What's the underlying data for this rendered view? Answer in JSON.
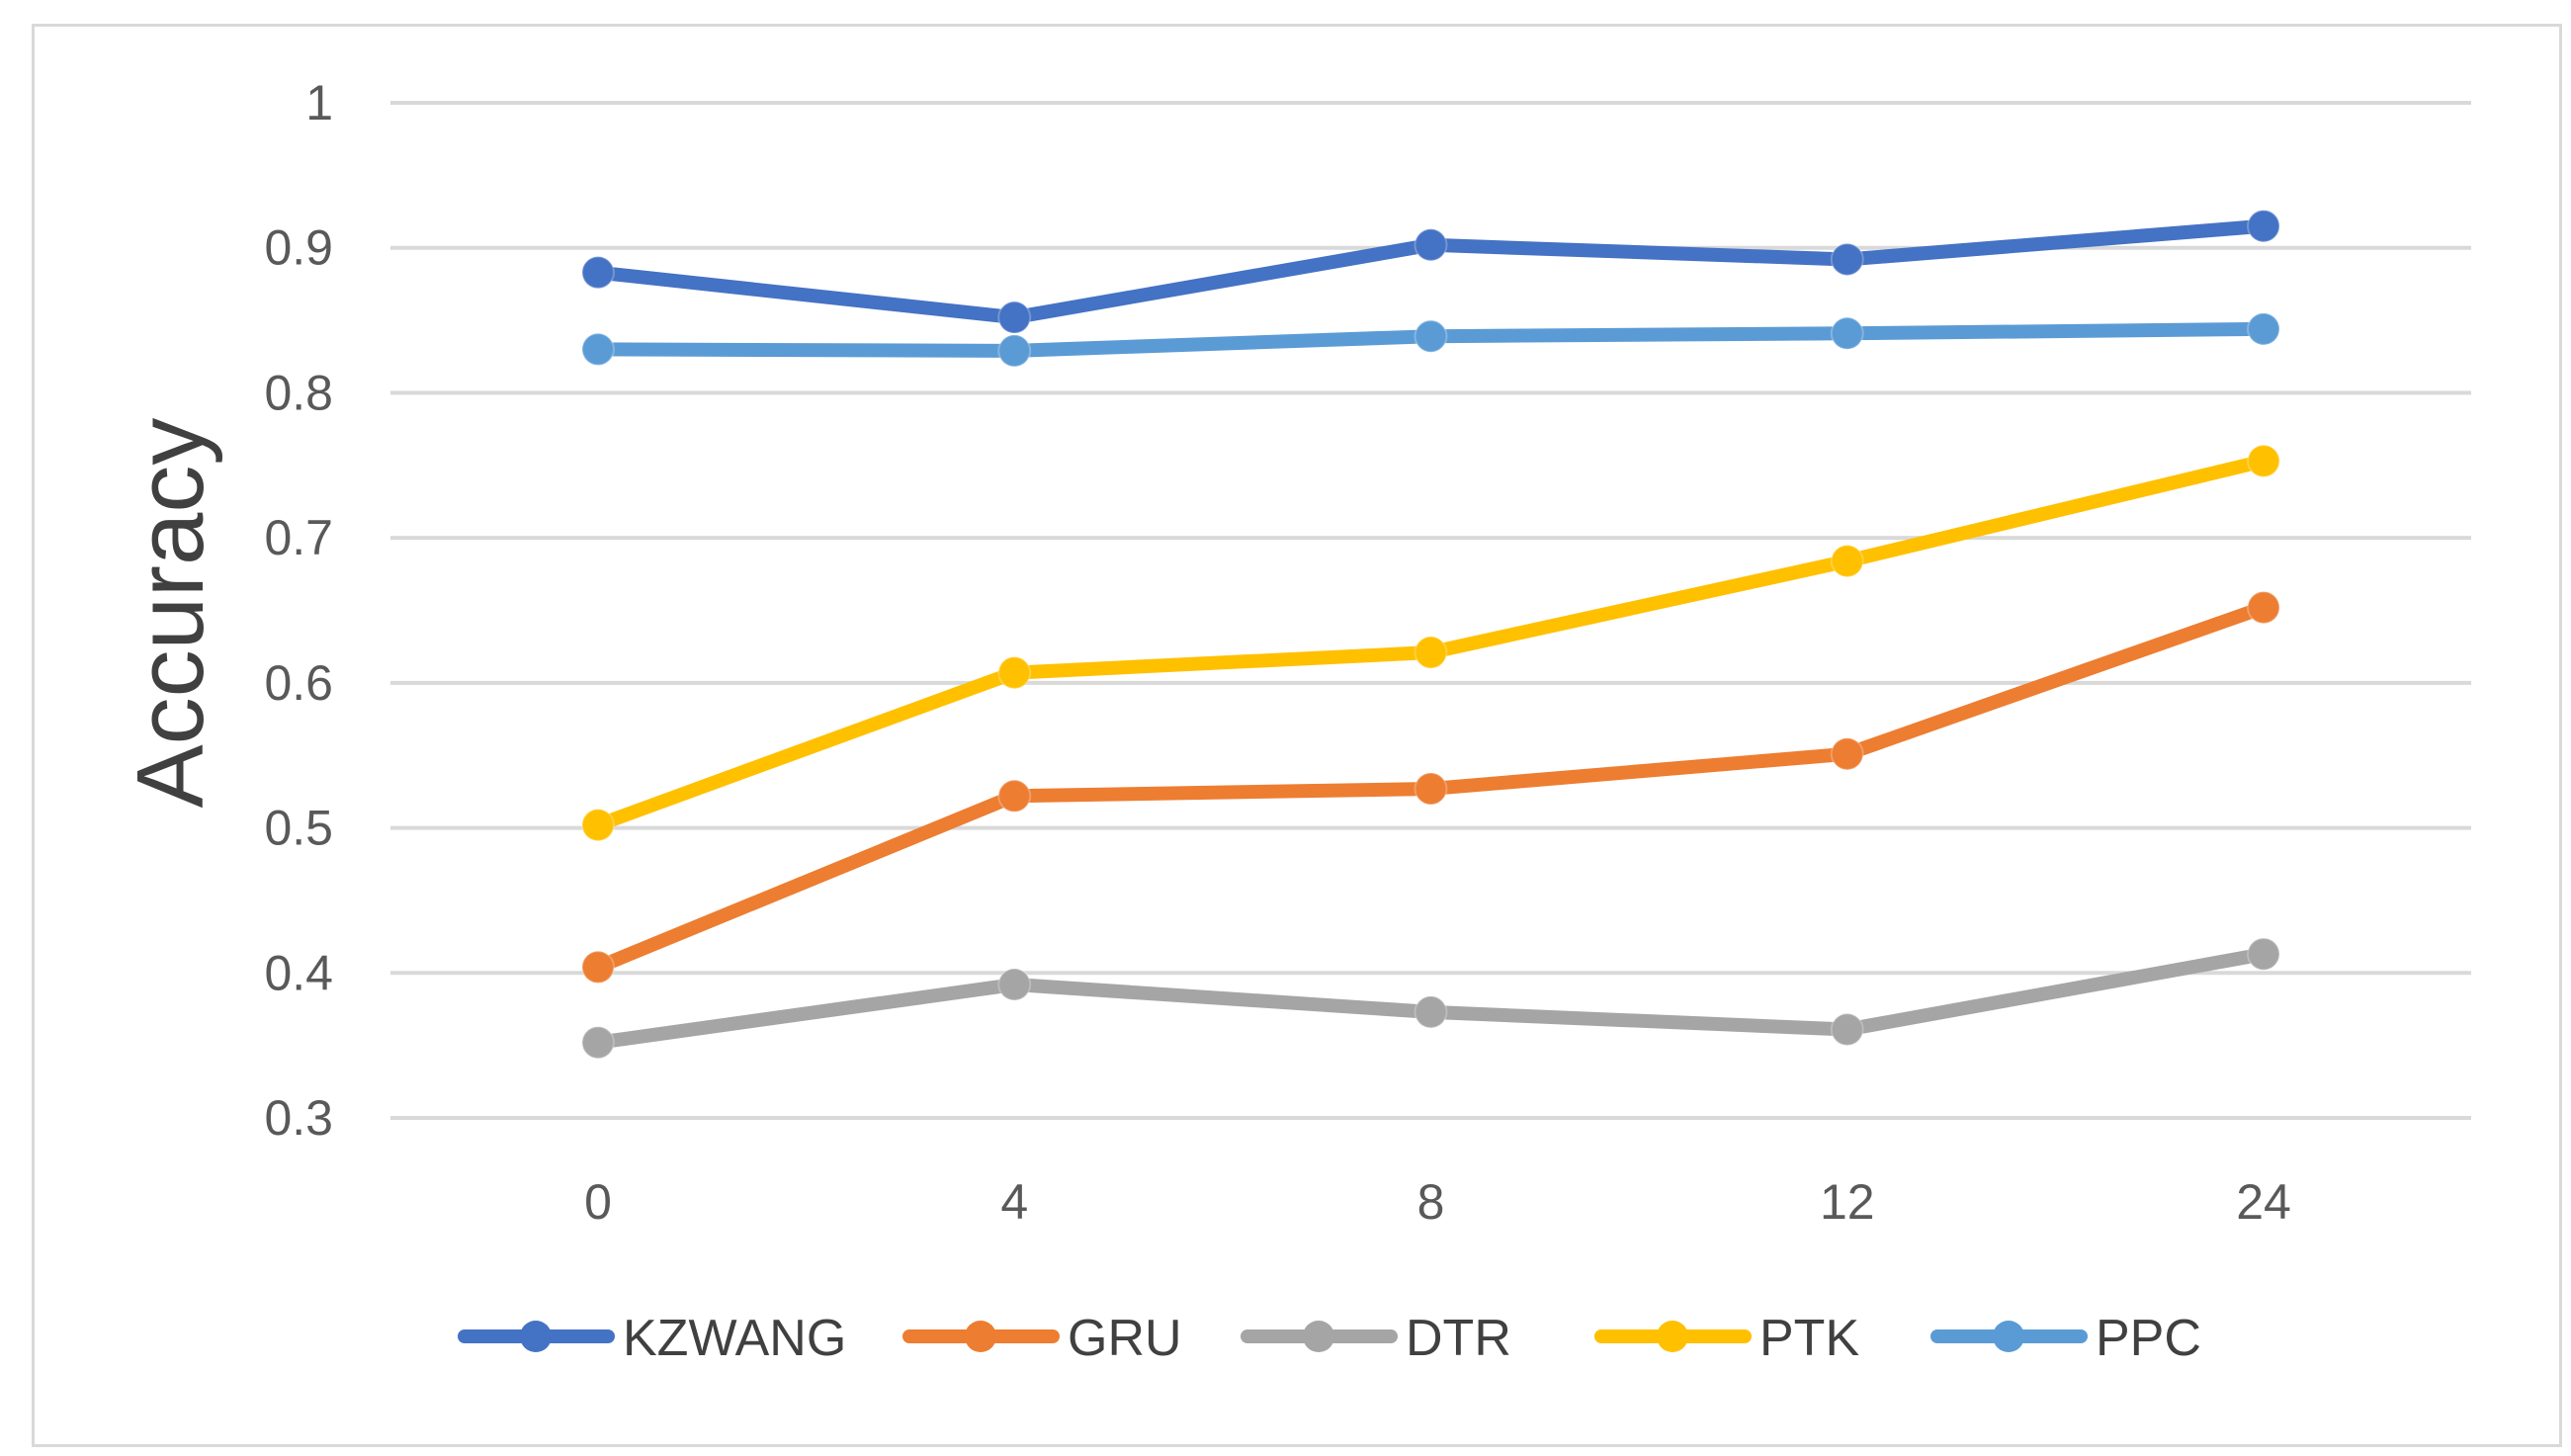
{
  "chart_data": {
    "type": "line",
    "title": "",
    "xlabel": "",
    "ylabel": "Accuracy",
    "categories": [
      "0",
      "4",
      "8",
      "12",
      "24"
    ],
    "ylim": [
      0.3,
      1.0
    ],
    "yticks": [
      "0.3",
      "0.4",
      "0.5",
      "0.6",
      "0.7",
      "0.8",
      "0.9",
      "1"
    ],
    "grid": true,
    "legend_position": "bottom",
    "series": [
      {
        "name": "KZWANG",
        "color": "#4472c4",
        "values": [
          0.883,
          0.852,
          0.902,
          0.892,
          0.915
        ]
      },
      {
        "name": "GRU",
        "color": "#ed7d31",
        "values": [
          0.404,
          0.522,
          0.527,
          0.551,
          0.652
        ]
      },
      {
        "name": "DTR",
        "color": "#a5a5a5",
        "values": [
          0.352,
          0.392,
          0.373,
          0.361,
          0.413
        ]
      },
      {
        "name": "PTK",
        "color": "#ffc000",
        "values": [
          0.502,
          0.607,
          0.621,
          0.684,
          0.753
        ]
      },
      {
        "name": "PPC",
        "color": "#5b9bd5",
        "values": [
          0.83,
          0.829,
          0.839,
          0.841,
          0.844
        ]
      }
    ]
  }
}
